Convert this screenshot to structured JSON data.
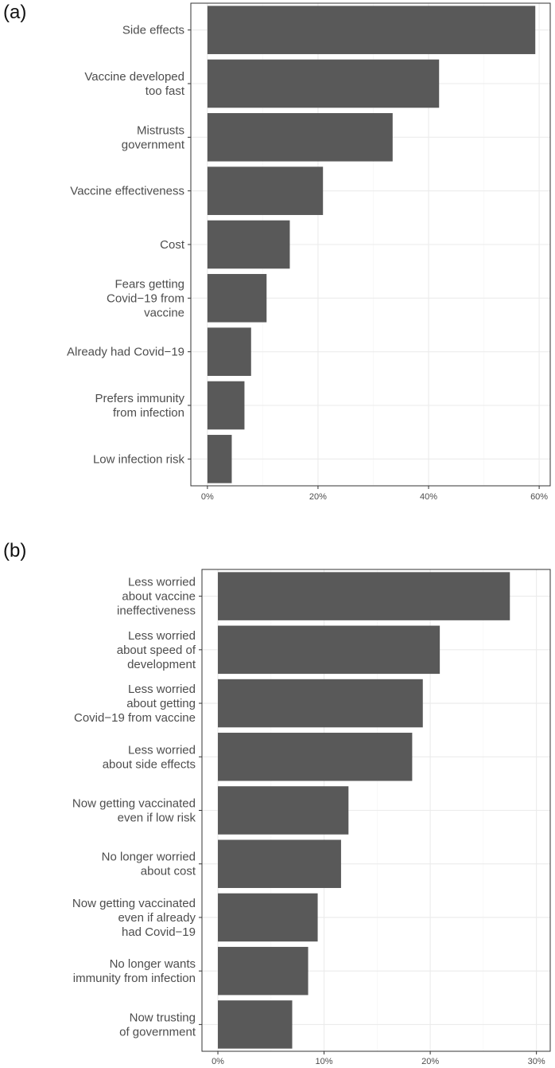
{
  "chart_data": [
    {
      "panel": "(a)",
      "type": "bar",
      "orientation": "horizontal",
      "categories": [
        [
          "Side effects"
        ],
        [
          "Vaccine developed",
          "too fast"
        ],
        [
          "Mistrusts",
          "government"
        ],
        [
          "Vaccine effectiveness"
        ],
        [
          "Cost"
        ],
        [
          "Fears getting",
          "Covid−19 from",
          "vaccine"
        ],
        [
          "Already had Covid−19"
        ],
        [
          "Prefers immunity",
          "from infection"
        ],
        [
          "Low infection risk"
        ]
      ],
      "values": [
        59.3,
        41.9,
        33.5,
        20.9,
        14.9,
        10.7,
        7.9,
        6.7,
        4.4
      ],
      "xlim": [
        -3,
        62
      ],
      "xticks": [
        0,
        20,
        40,
        60
      ],
      "xtick_labels": [
        "0%",
        "20%",
        "40%",
        "60%"
      ],
      "grid": true,
      "xlabel": "",
      "ylabel": ""
    },
    {
      "panel": "(b)",
      "type": "bar",
      "orientation": "horizontal",
      "categories": [
        [
          "Less worried",
          "about vaccine",
          "ineffectiveness"
        ],
        [
          "Less worried",
          "about speed of",
          "development"
        ],
        [
          "Less worried",
          "about getting",
          "Covid−19 from vaccine"
        ],
        [
          "Less worried",
          "about side effects"
        ],
        [
          "Now getting vaccinated",
          "even if low risk"
        ],
        [
          "No longer worried",
          "about cost"
        ],
        [
          "Now getting vaccinated",
          "even if already",
          "had Covid−19"
        ],
        [
          "No longer wants",
          "immunity from infection"
        ],
        [
          "Now trusting",
          "of government"
        ]
      ],
      "values": [
        27.5,
        20.9,
        19.3,
        18.3,
        12.3,
        11.6,
        9.4,
        8.5,
        7.0
      ],
      "xlim": [
        -1.5,
        31.3
      ],
      "xticks": [
        0,
        10,
        20,
        30
      ],
      "xtick_labels": [
        "0%",
        "10%",
        "20%",
        "30%"
      ],
      "grid": true,
      "xlabel": "",
      "ylabel": ""
    }
  ],
  "panel_labels": {
    "a": "(a)",
    "b": "(b)"
  },
  "colors": {
    "bar": "#595959",
    "grid_major": "#ebebeb",
    "grid_minor": "#f5f5f5",
    "border": "#333333",
    "tick": "#4d4d4d"
  }
}
